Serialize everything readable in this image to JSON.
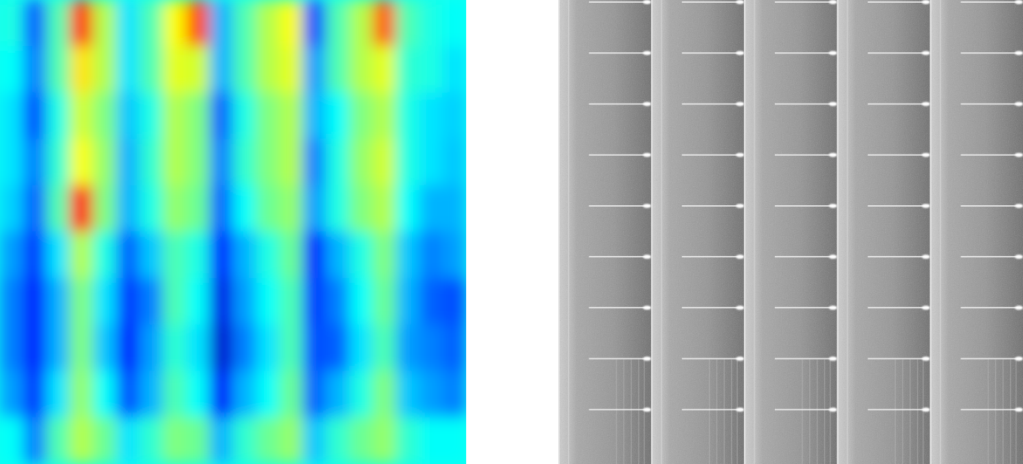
{
  "chart_data": [
    {
      "type": "heatmap",
      "tick_labels": false,
      "color_range": [
        0,
        1
      ],
      "cells": [
        [
          0.4,
          0.22,
          0.45,
          0.82,
          0.55,
          0.35,
          0.45,
          0.62,
          0.8,
          0.3,
          0.45,
          0.55,
          0.62,
          0.2,
          0.45,
          0.55,
          0.78,
          0.45,
          0.4,
          0.38
        ],
        [
          0.38,
          0.25,
          0.45,
          0.65,
          0.55,
          0.35,
          0.45,
          0.6,
          0.58,
          0.3,
          0.45,
          0.55,
          0.6,
          0.28,
          0.45,
          0.55,
          0.6,
          0.42,
          0.4,
          0.35
        ],
        [
          0.35,
          0.2,
          0.4,
          0.58,
          0.5,
          0.32,
          0.4,
          0.55,
          0.5,
          0.22,
          0.4,
          0.5,
          0.55,
          0.3,
          0.38,
          0.5,
          0.55,
          0.4,
          0.35,
          0.33
        ],
        [
          0.35,
          0.25,
          0.42,
          0.62,
          0.52,
          0.3,
          0.42,
          0.55,
          0.5,
          0.25,
          0.42,
          0.5,
          0.55,
          0.25,
          0.4,
          0.52,
          0.58,
          0.4,
          0.35,
          0.32
        ],
        [
          0.33,
          0.22,
          0.45,
          0.85,
          0.5,
          0.3,
          0.4,
          0.52,
          0.48,
          0.22,
          0.38,
          0.48,
          0.52,
          0.28,
          0.4,
          0.5,
          0.55,
          0.38,
          0.3,
          0.3
        ],
        [
          0.28,
          0.18,
          0.35,
          0.55,
          0.4,
          0.22,
          0.32,
          0.45,
          0.4,
          0.15,
          0.3,
          0.4,
          0.48,
          0.15,
          0.3,
          0.4,
          0.5,
          0.32,
          0.25,
          0.28
        ],
        [
          0.25,
          0.15,
          0.3,
          0.5,
          0.35,
          0.18,
          0.25,
          0.45,
          0.38,
          0.1,
          0.28,
          0.38,
          0.45,
          0.18,
          0.25,
          0.38,
          0.48,
          0.3,
          0.22,
          0.2
        ],
        [
          0.25,
          0.15,
          0.3,
          0.5,
          0.32,
          0.15,
          0.28,
          0.42,
          0.35,
          0.08,
          0.25,
          0.35,
          0.45,
          0.2,
          0.22,
          0.35,
          0.45,
          0.28,
          0.25,
          0.22
        ],
        [
          0.28,
          0.18,
          0.35,
          0.52,
          0.38,
          0.2,
          0.3,
          0.45,
          0.38,
          0.12,
          0.3,
          0.38,
          0.48,
          0.22,
          0.3,
          0.4,
          0.5,
          0.32,
          0.28,
          0.25
        ],
        [
          0.38,
          0.25,
          0.45,
          0.55,
          0.48,
          0.35,
          0.42,
          0.5,
          0.48,
          0.3,
          0.42,
          0.48,
          0.52,
          0.32,
          0.42,
          0.48,
          0.52,
          0.42,
          0.38,
          0.38
        ]
      ]
    },
    {
      "type": "image",
      "tick_labels": false,
      "stripes": 5,
      "pulses": 9
    }
  ]
}
